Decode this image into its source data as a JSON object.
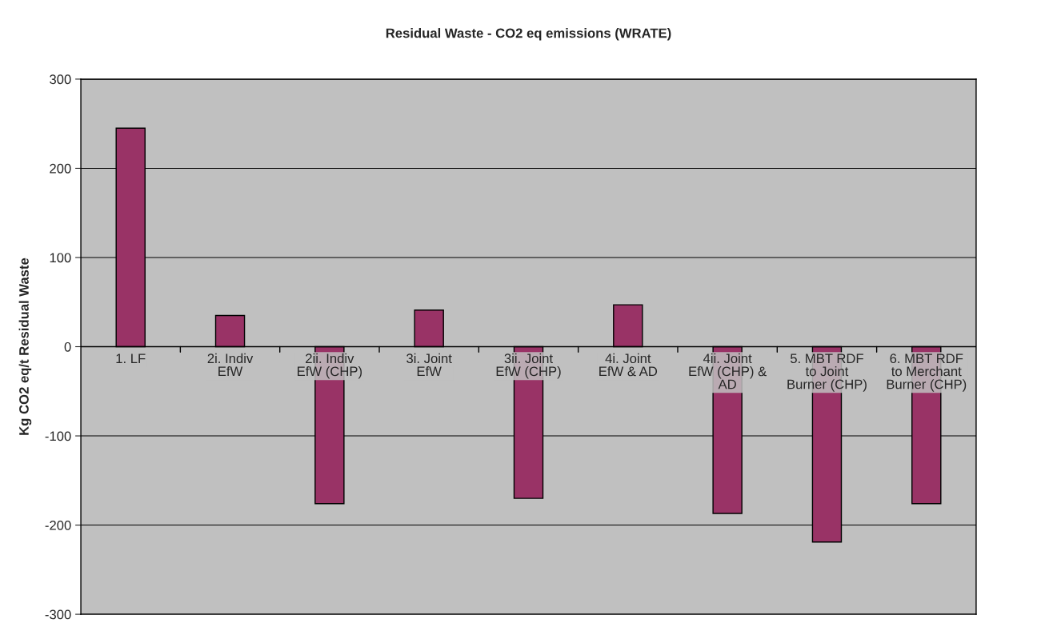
{
  "chart_data": {
    "type": "bar",
    "title": "Residual Waste - CO2 eq emissions (WRATE)",
    "ylabel": "Kg CO2 eq/t Residual Waste",
    "categories": [
      "1. LF",
      "2i. Indiv EfW",
      "2ii. Indiv EfW (CHP)",
      "3i. Joint EfW",
      "3ii. Joint EfW (CHP)",
      "4i. Joint EfW & AD",
      "4ii. Joint EfW (CHP) & AD",
      "5. MBT RDF to Joint Burner (CHP)",
      "6. MBT RDF to Merchant Burner (CHP)"
    ],
    "values": [
      245,
      35,
      -176,
      41,
      -170,
      47,
      -187,
      -219,
      -176
    ],
    "color": "#993366",
    "ylim": [
      -300,
      300
    ],
    "yticks": [
      -300,
      -200,
      -100,
      0,
      100,
      200,
      300
    ],
    "grid": "y"
  }
}
